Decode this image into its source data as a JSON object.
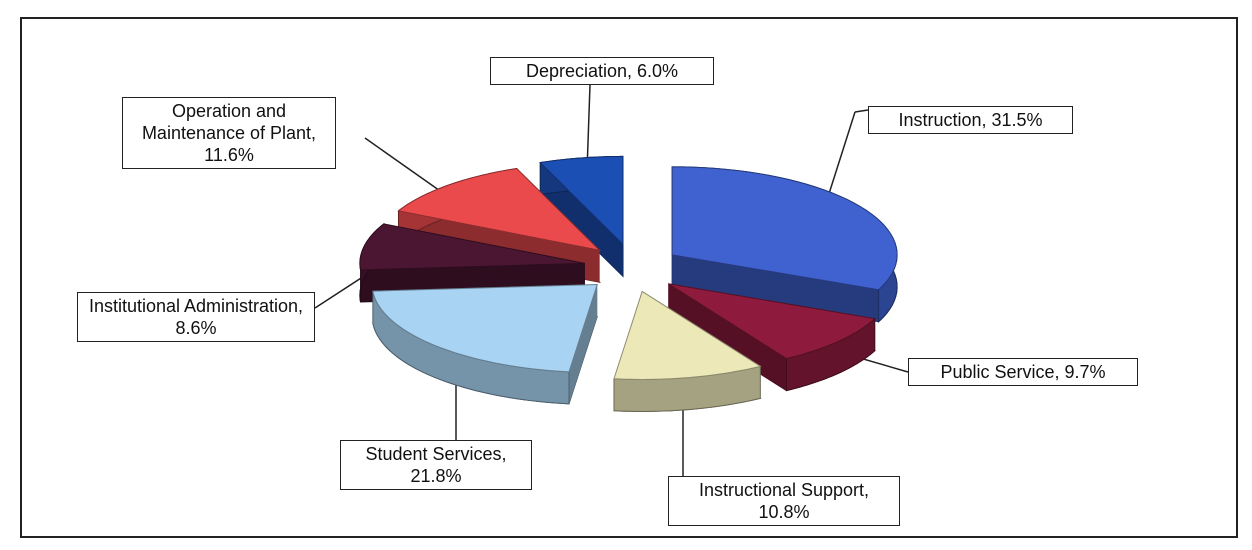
{
  "chart_data": {
    "type": "pie",
    "values": [
      31.5,
      9.7,
      10.8,
      21.8,
      8.6,
      11.6,
      6.0
    ],
    "value_labels": [
      "Instruction, 31.5%",
      "Public Service, 9.7%",
      "Instructional Support, 10.8%",
      "Student Services, 21.8%",
      "Institutional Administration, 8.6%",
      "Operation and Maintenance of Plant, 11.6%",
      "Depreciation, 6.0%"
    ],
    "colors": [
      "#3f62d0",
      "#8e1b3e",
      "#ece8b8",
      "#a9d3f2",
      "#4b1632",
      "#ea4a4c",
      "#1c4fb4"
    ]
  }
}
